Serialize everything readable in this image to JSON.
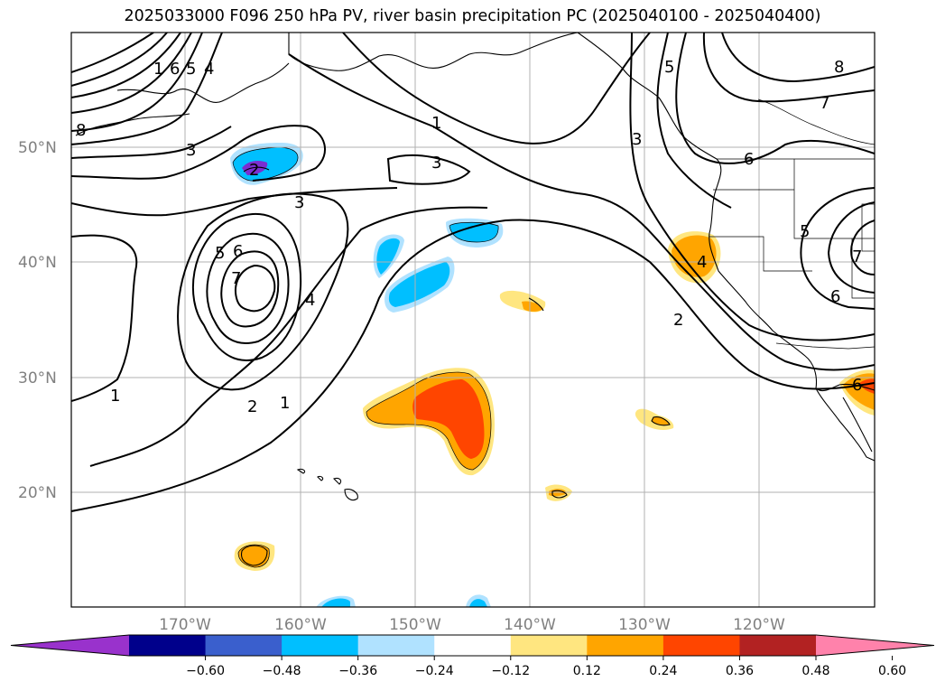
{
  "title": "2025033000 F096 250 hPa PV, river basin precipitation PC (2025040100 - 2025040400)",
  "map": {
    "lat_labels": [
      "50°N",
      "40°N",
      "30°N",
      "20°N"
    ],
    "lon_labels": [
      "170°W",
      "160°W",
      "150°W",
      "140°W",
      "130°W",
      "120°W"
    ],
    "gridlines": true
  },
  "pv_contour_labels": [
    "1",
    "6",
    "5",
    "4",
    "8",
    "3",
    "2",
    "1",
    "3",
    "3",
    "5",
    "6",
    "7",
    "4",
    "1",
    "2",
    "1",
    "5",
    "3",
    "6",
    "8",
    "7",
    "5",
    "4",
    "6",
    "7",
    "6",
    "2"
  ],
  "colorbar": {
    "ticks": [
      "−0.60",
      "−0.48",
      "−0.36",
      "−0.24",
      "−0.12",
      "0.12",
      "0.24",
      "0.36",
      "0.48",
      "0.60"
    ],
    "colors": [
      "#9932cc",
      "#00008b",
      "#3a5fcd",
      "#00bfff",
      "#b0e2ff",
      "#ffffff",
      "#ffe680",
      "#ffa500",
      "#ff4500",
      "#b22222",
      "#ff82ab"
    ],
    "extend": "both"
  }
}
